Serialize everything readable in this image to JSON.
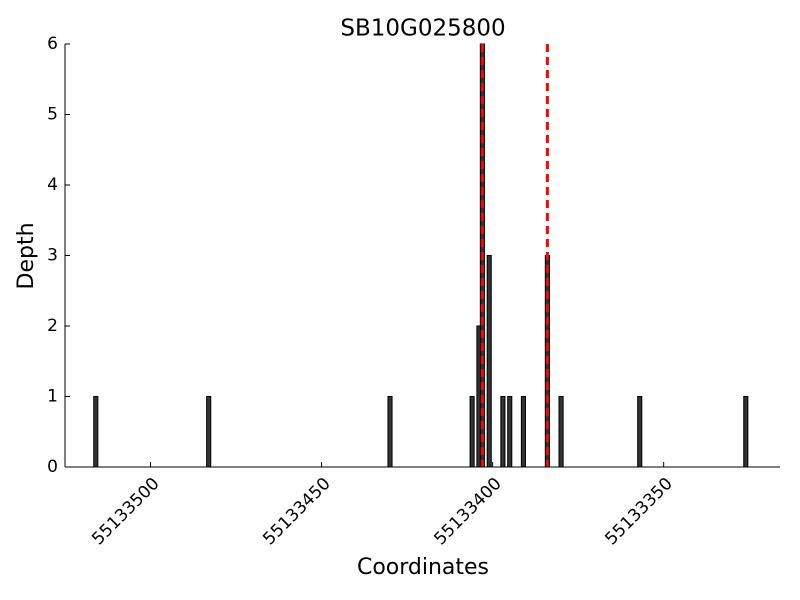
{
  "chart_data": {
    "type": "bar",
    "title": "SB10G025800",
    "x_label": "Coordinates",
    "y_label": "Depth",
    "x": [
      55133516,
      55133483,
      55133430,
      55133406,
      55133404,
      55133403,
      55133401,
      55133397,
      55133395,
      55133391,
      55133384,
      55133380,
      55133357,
      55133326
    ],
    "values": [
      1,
      1,
      1,
      1,
      2,
      6,
      3,
      1,
      1,
      1,
      3,
      1,
      1,
      1
    ],
    "color": "#333333",
    "vlines": [
      55133403,
      55133384
    ],
    "vline_color": "#ff0000",
    "xlim": [
      55133525,
      55133316
    ],
    "xticks": [
      55133500,
      55133450,
      55133400,
      55133350
    ],
    "ylim": [
      0,
      6
    ],
    "yticks": [
      0,
      1,
      2,
      3,
      4,
      5,
      6
    ],
    "grid": false
  }
}
